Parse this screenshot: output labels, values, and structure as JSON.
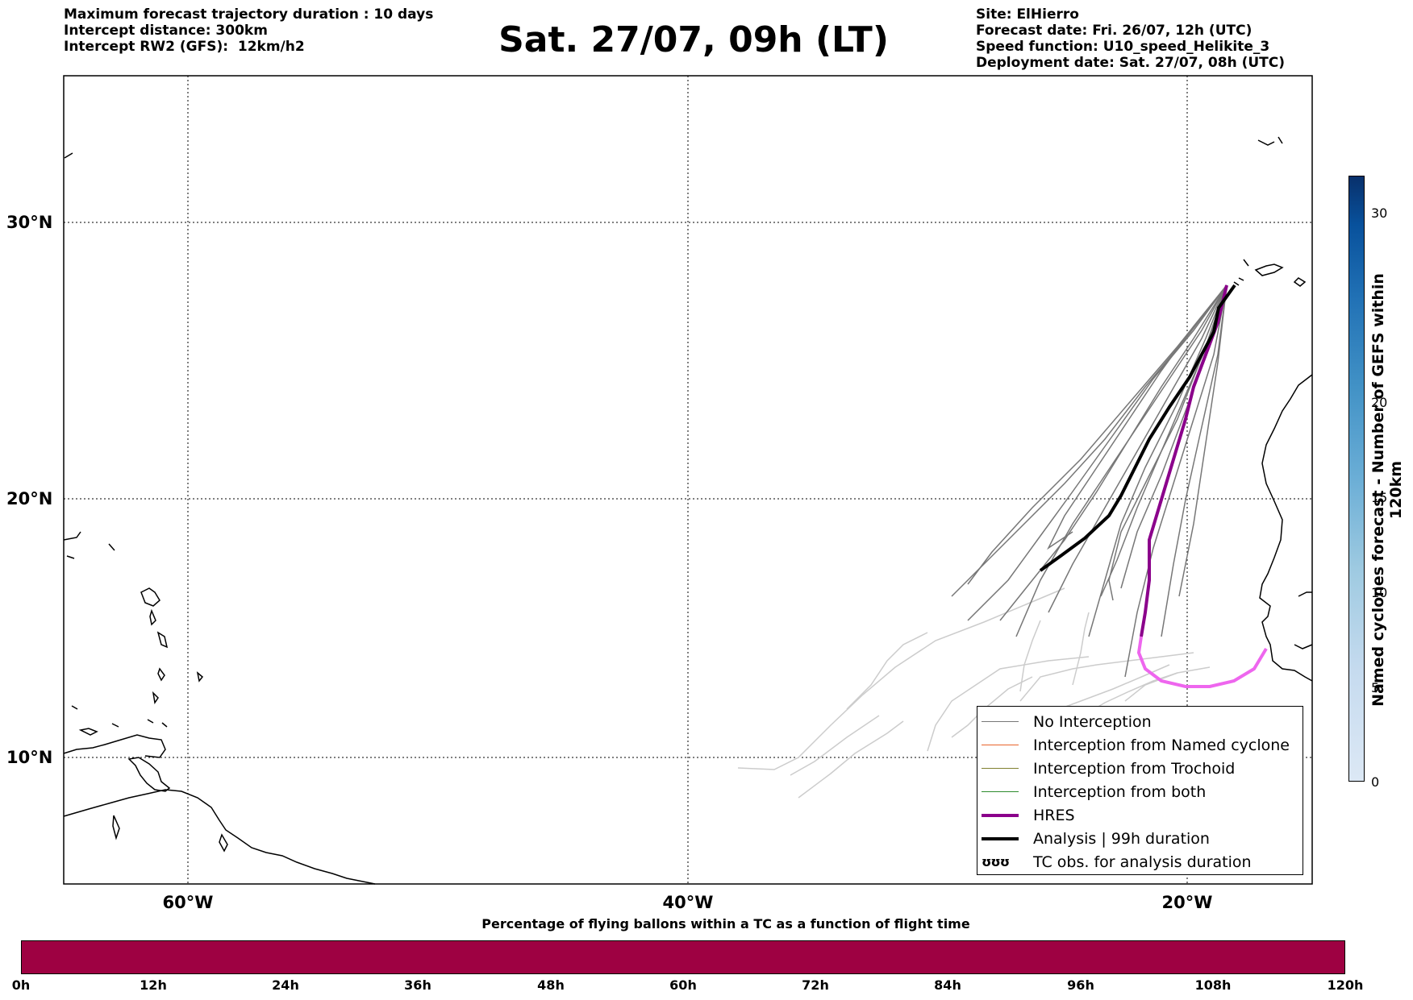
{
  "header": {
    "left_lines": [
      "Maximum forecast trajectory duration : 10 days",
      "Intercept distance: 300km",
      "Intercept RW2 (GFS):  12km/h2"
    ],
    "title": "Sat. 27/07, 09h (LT)",
    "right_lines": [
      "Site: ElHierro",
      "Forecast date: Fri. 26/07, 12h (UTC)",
      "Speed function: U10_speed_Helikite_3",
      "Deployment date: Sat. 27/07, 08h (UTC)"
    ]
  },
  "map": {
    "lat_labels": [
      "30°N",
      "20°N",
      "10°N"
    ],
    "lon_labels": [
      "60°W",
      "40°W",
      "20°W"
    ],
    "gridlines": "dotted"
  },
  "legend": {
    "items": [
      {
        "label": "No Interception",
        "color": "#777777"
      },
      {
        "label": "Interception from Named cyclone",
        "color": "#e8642b"
      },
      {
        "label": "Interception from Trochoid",
        "color": "#808030"
      },
      {
        "label": "Interception from both",
        "color": "#2e8b2e"
      },
      {
        "label": "HRES",
        "color": "#8b008b"
      },
      {
        "label": "Analysis | 99h duration",
        "color": "#000000"
      },
      {
        "label": "TC obs. for analysis duration",
        "symbol": "ʊʊʊ"
      }
    ]
  },
  "colorbar_vertical": {
    "label": "Named cyclones forecast - Number of GEFS within 120km",
    "ticks": [
      "0",
      "5",
      "10",
      "15",
      "20",
      "30"
    ]
  },
  "colorbar_horizontal": {
    "title": "Percentage of flying ballons within a TC as a function of flight time",
    "ticks": [
      "0h",
      "12h",
      "24h",
      "36h",
      "48h",
      "60h",
      "72h",
      "84h",
      "96h",
      "108h",
      "120h"
    ],
    "color": "#9e0142"
  }
}
